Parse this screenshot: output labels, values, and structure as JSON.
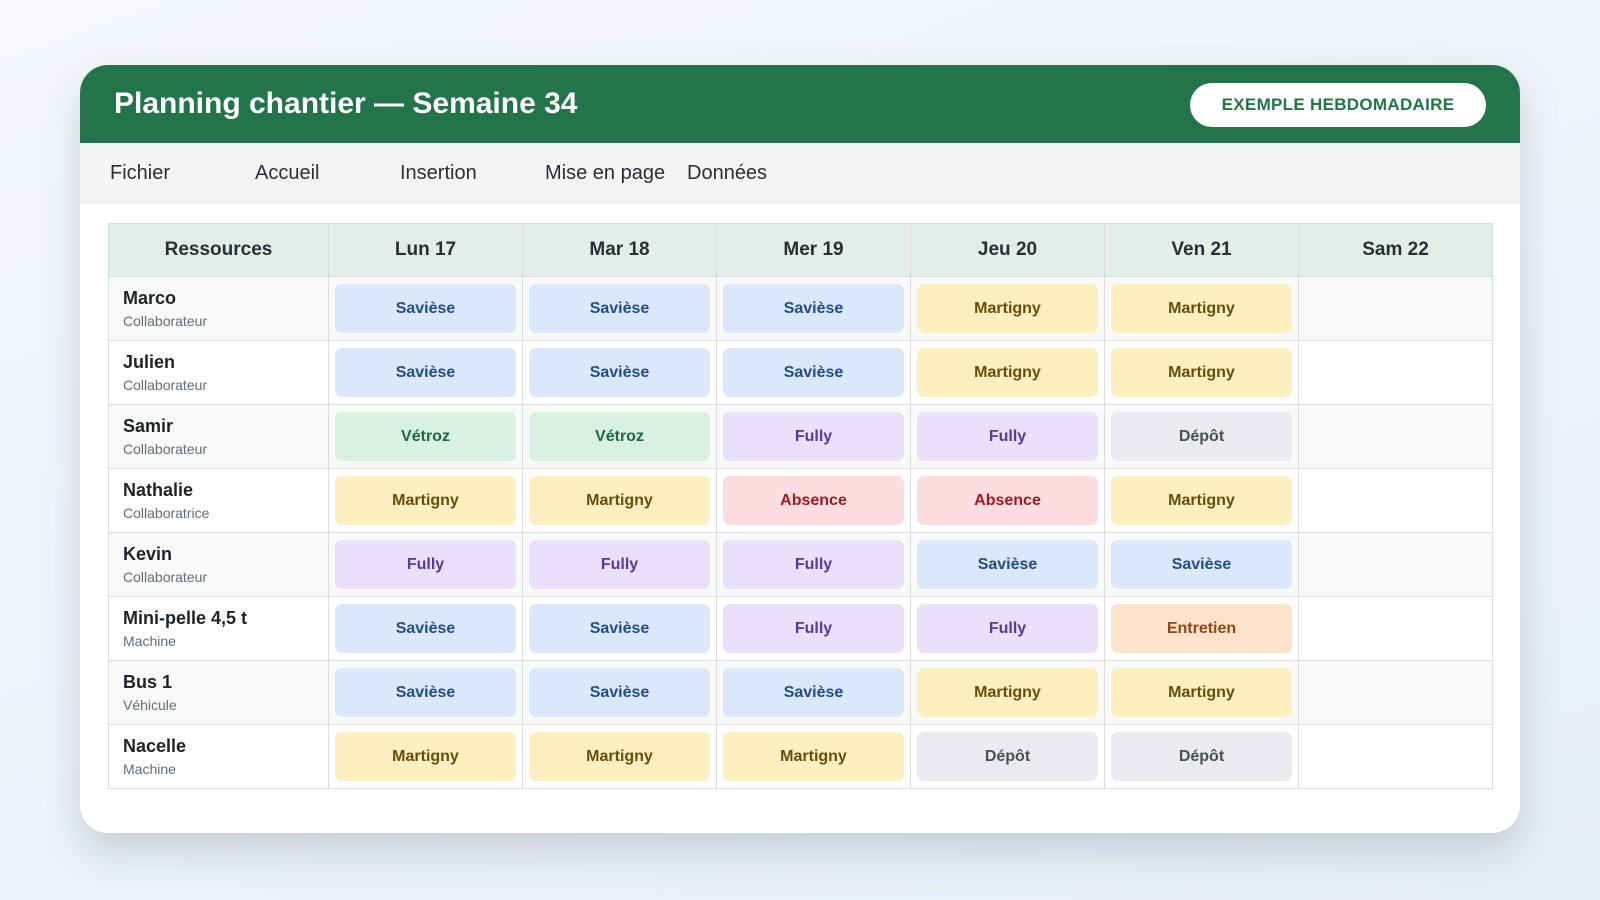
{
  "header": {
    "title": "Planning chantier — Semaine 34",
    "badge": "EXEMPLE HEBDOMADAIRE"
  },
  "menu": [
    "Fichier",
    "Accueil",
    "Insertion",
    "Mise en page",
    "Données"
  ],
  "table": {
    "columns": [
      "Ressources",
      "Lun 17",
      "Mar 18",
      "Mer 19",
      "Jeu 20",
      "Ven 21",
      "Sam 22"
    ],
    "rows": [
      {
        "name": "Marco",
        "role": "Collaborateur",
        "cells": [
          {
            "text": "Savièse",
            "tone": "blue"
          },
          {
            "text": "Savièse",
            "tone": "blue"
          },
          {
            "text": "Savièse",
            "tone": "blue"
          },
          {
            "text": "Martigny",
            "tone": "yellow"
          },
          {
            "text": "Martigny",
            "tone": "yellow"
          }
        ]
      },
      {
        "name": "Julien",
        "role": "Collaborateur",
        "cells": [
          {
            "text": "Savièse",
            "tone": "blue"
          },
          {
            "text": "Savièse",
            "tone": "blue"
          },
          {
            "text": "Savièse",
            "tone": "blue"
          },
          {
            "text": "Martigny",
            "tone": "yellow"
          },
          {
            "text": "Martigny",
            "tone": "yellow"
          }
        ]
      },
      {
        "name": "Samir",
        "role": "Collaborateur",
        "cells": [
          {
            "text": "Vétroz",
            "tone": "green"
          },
          {
            "text": "Vétroz",
            "tone": "green"
          },
          {
            "text": "Fully",
            "tone": "purple"
          },
          {
            "text": "Fully",
            "tone": "purple"
          },
          {
            "text": "Dépôt",
            "tone": "gray"
          }
        ]
      },
      {
        "name": "Nathalie",
        "role": "Collaboratrice",
        "cells": [
          {
            "text": "Martigny",
            "tone": "yellow"
          },
          {
            "text": "Martigny",
            "tone": "yellow"
          },
          {
            "text": "Absence",
            "tone": "red"
          },
          {
            "text": "Absence",
            "tone": "red"
          },
          {
            "text": "Martigny",
            "tone": "yellow"
          }
        ]
      },
      {
        "name": "Kevin",
        "role": "Collaborateur",
        "cells": [
          {
            "text": "Fully",
            "tone": "purple"
          },
          {
            "text": "Fully",
            "tone": "purple"
          },
          {
            "text": "Fully",
            "tone": "purple"
          },
          {
            "text": "Savièse",
            "tone": "blue"
          },
          {
            "text": "Savièse",
            "tone": "blue"
          }
        ]
      },
      {
        "name": "Mini-pelle 4,5 t",
        "role": "Machine",
        "cells": [
          {
            "text": "Savièse",
            "tone": "blue"
          },
          {
            "text": "Savièse",
            "tone": "blue"
          },
          {
            "text": "Fully",
            "tone": "purple"
          },
          {
            "text": "Fully",
            "tone": "purple"
          },
          {
            "text": "Entretien",
            "tone": "orange"
          }
        ]
      },
      {
        "name": "Bus 1",
        "role": "Véhicule",
        "cells": [
          {
            "text": "Savièse",
            "tone": "blue"
          },
          {
            "text": "Savièse",
            "tone": "blue"
          },
          {
            "text": "Savièse",
            "tone": "blue"
          },
          {
            "text": "Martigny",
            "tone": "yellow"
          },
          {
            "text": "Martigny",
            "tone": "yellow"
          }
        ]
      },
      {
        "name": "Nacelle",
        "role": "Machine",
        "cells": [
          {
            "text": "Martigny",
            "tone": "yellow"
          },
          {
            "text": "Martigny",
            "tone": "yellow"
          },
          {
            "text": "Martigny",
            "tone": "yellow"
          },
          {
            "text": "Dépôt",
            "tone": "gray"
          },
          {
            "text": "Dépôt",
            "tone": "gray"
          }
        ]
      }
    ]
  }
}
